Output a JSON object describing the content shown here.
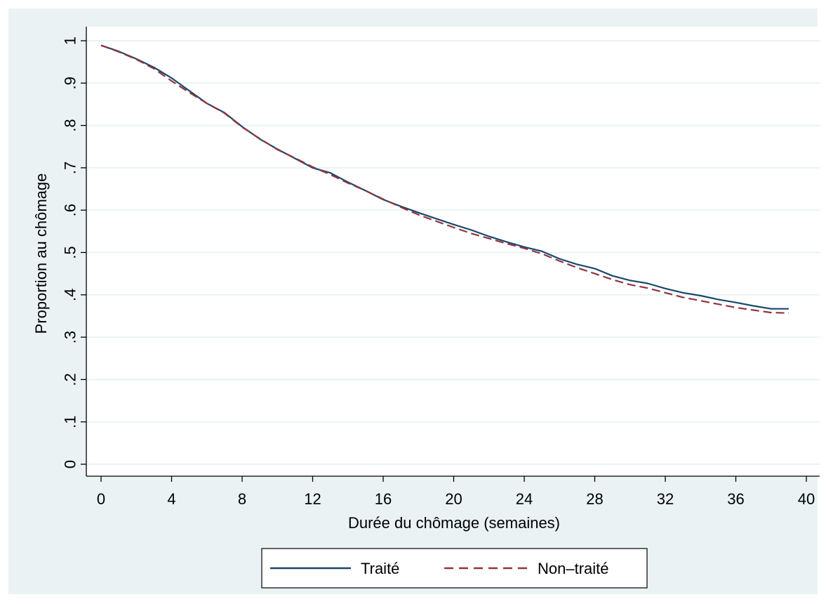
{
  "chart_data": {
    "type": "line",
    "title": "",
    "xlabel": "Durée du chômage (semaines)",
    "ylabel": "Proportion au chômage",
    "xlim": [
      0,
      40
    ],
    "ylim": [
      0,
      1
    ],
    "xticks": [
      0,
      4,
      8,
      12,
      16,
      20,
      24,
      28,
      32,
      36,
      40
    ],
    "xtick_labels": [
      "0",
      "4",
      "8",
      "12",
      "16",
      "20",
      "24",
      "28",
      "32",
      "36",
      "40"
    ],
    "yticks": [
      0,
      0.1,
      0.2,
      0.3,
      0.4,
      0.5,
      0.6,
      0.7,
      0.8,
      0.9,
      1
    ],
    "ytick_labels": [
      "0",
      ".1",
      ".2",
      ".3",
      ".4",
      ".5",
      ".6",
      ".7",
      ".8",
      ".9",
      "1"
    ],
    "grid": true,
    "legend_position": "bottom",
    "x": [
      0,
      1,
      2,
      3,
      4,
      5,
      6,
      7,
      8,
      9,
      10,
      11,
      12,
      13,
      14,
      15,
      16,
      17,
      18,
      19,
      20,
      21,
      22,
      23,
      24,
      25,
      26,
      27,
      28,
      29,
      30,
      31,
      32,
      33,
      34,
      35,
      36,
      37,
      38,
      39
    ],
    "series": [
      {
        "name": "Traité",
        "color": "#1a476f",
        "dash": "solid",
        "values": [
          0.989,
          0.975,
          0.957,
          0.937,
          0.912,
          0.882,
          0.852,
          0.83,
          0.797,
          0.768,
          0.744,
          0.722,
          0.7,
          0.688,
          0.666,
          0.646,
          0.625,
          0.609,
          0.594,
          0.58,
          0.566,
          0.553,
          0.538,
          0.525,
          0.513,
          0.503,
          0.485,
          0.472,
          0.462,
          0.445,
          0.434,
          0.427,
          0.415,
          0.405,
          0.398,
          0.389,
          0.382,
          0.374,
          0.367,
          0.367
        ]
      },
      {
        "name": "Non–traité",
        "color": "#90353b",
        "dash": "dashed",
        "values": [
          0.989,
          0.974,
          0.956,
          0.934,
          0.905,
          0.878,
          0.852,
          0.829,
          0.796,
          0.769,
          0.743,
          0.723,
          0.702,
          0.684,
          0.664,
          0.646,
          0.626,
          0.607,
          0.589,
          0.574,
          0.559,
          0.545,
          0.533,
          0.521,
          0.51,
          0.497,
          0.48,
          0.464,
          0.45,
          0.436,
          0.424,
          0.416,
          0.405,
          0.394,
          0.386,
          0.378,
          0.37,
          0.364,
          0.358,
          0.357
        ]
      }
    ]
  },
  "colors": {
    "outer_background": "#eaf2f3",
    "plot_background": "#ffffff",
    "grid": "#eaf2f3",
    "axis": "#000000"
  }
}
